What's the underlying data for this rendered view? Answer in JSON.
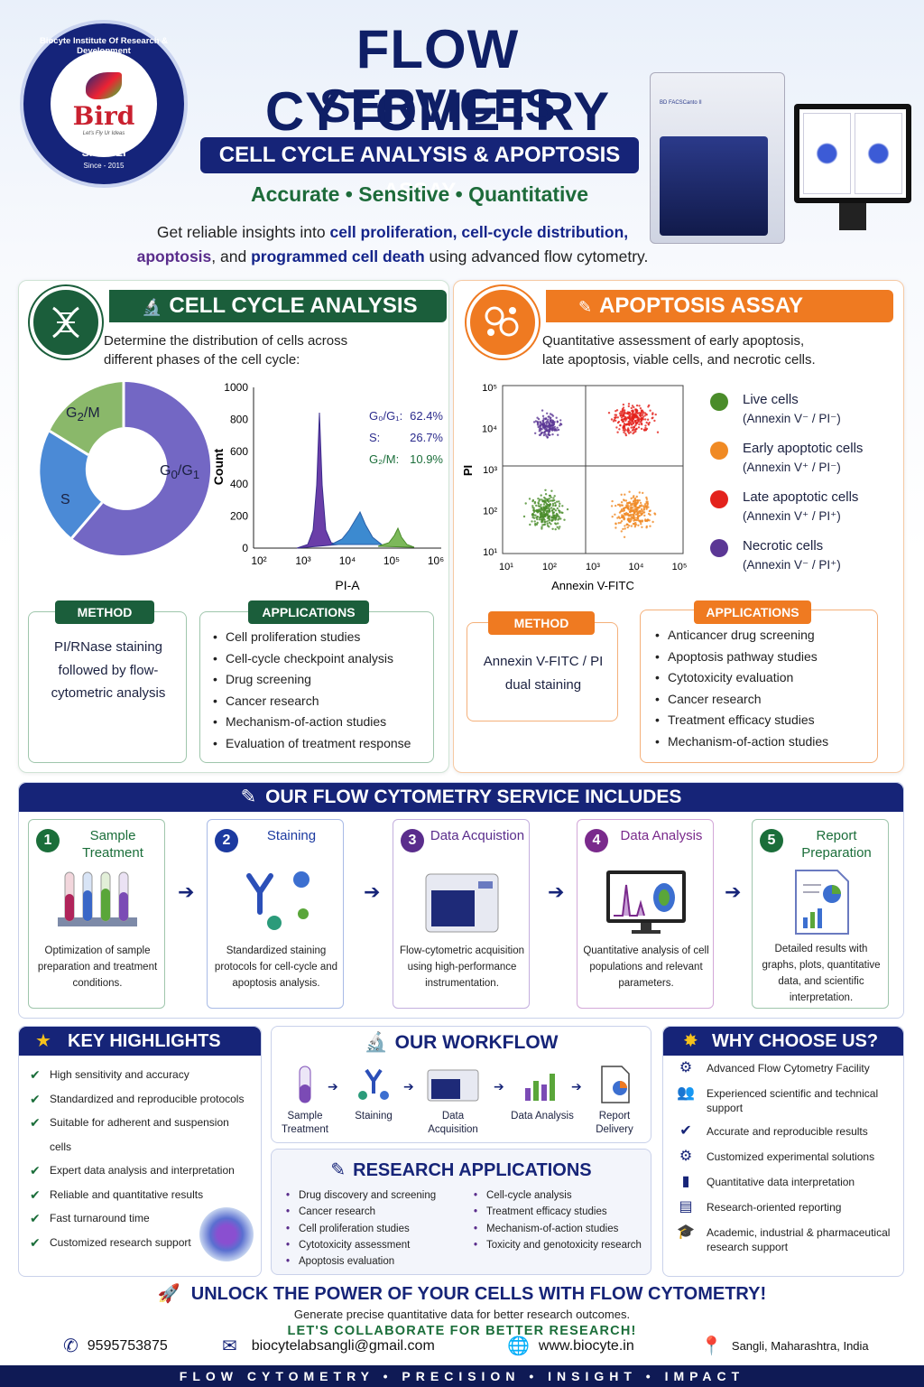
{
  "logo": {
    "ring_text": "Biocyte Institute Of Research & Development",
    "name": "Bird",
    "tagline": "Let's Fly Ur Ideas",
    "city": "SANGLI",
    "since": "Since - 2015"
  },
  "header": {
    "title_line1": "FLOW CYTOMETRY",
    "title_line2": "SERVICES",
    "subtitle": "CELL CYCLE ANALYSIS & APOPTOSIS ASSAY",
    "tagline": "Accurate  •  Sensitive  •  Quantitative",
    "intro_parts": [
      "Get reliable insights into ",
      "cell proliferation, cell-cycle distribution,",
      "apoptosis",
      ", and ",
      "programmed cell death",
      " using advanced flow cytometry."
    ],
    "instrument_label": "BD FACSCanto II"
  },
  "cell_cycle": {
    "title": "CELL CYCLE ANALYSIS",
    "description": "Determine the distribution of cells across different phases of the cell cycle:",
    "donut_labels": [
      "G2/M",
      "S",
      "G0/G1"
    ],
    "hist_legend": [
      "G0/G1:  62.4%",
      "S:          26.7%",
      "G2/M:  10.9%"
    ],
    "hist_ylabel": "Count",
    "hist_xlabel": "PI-A",
    "hist_yticks": [
      "1000",
      "800",
      "600",
      "400",
      "200",
      "0"
    ],
    "hist_xticks": [
      "10²",
      "10³",
      "10⁴",
      "10⁵",
      "10⁶"
    ],
    "method_label": "METHOD",
    "method_text": "PI/RNase staining followed by flow-cytometric analysis",
    "applications_label": "APPLICATIONS",
    "applications": [
      "Cell proliferation studies",
      "Cell-cycle checkpoint analysis",
      "Drug screening",
      "Cancer research",
      "Mechanism-of-action studies",
      "Evaluation of treatment response"
    ]
  },
  "apoptosis": {
    "title": "APOPTOSIS ASSAY",
    "description": "Quantitative assessment of early apoptosis, late apoptosis, viable cells, and necrotic cells.",
    "ylabel": "PI",
    "xlabel": "Annexin V-FITC",
    "yticks": [
      "10⁵",
      "10⁴",
      "10³",
      "10²",
      "10¹"
    ],
    "xticks": [
      "10¹",
      "10²",
      "10³",
      "10⁴",
      "10⁵"
    ],
    "legend": [
      {
        "name": "Live cells",
        "detail": "(Annexin V⁻ / PI⁻)",
        "color": "#4a8c2a"
      },
      {
        "name": "Early apoptotic cells",
        "detail": "(Annexin V⁺ / PI⁻)",
        "color": "#f08a24"
      },
      {
        "name": "Late apoptotic cells",
        "detail": "(Annexin V⁺ / PI⁺)",
        "color": "#e3221c"
      },
      {
        "name": "Necrotic cells",
        "detail": "(Annexin V⁻ / PI⁺)",
        "color": "#5b3795"
      }
    ],
    "method_label": "METHOD",
    "method_text": "Annexin V-FITC / PI dual staining",
    "applications_label": "APPLICATIONS",
    "applications": [
      "Anticancer drug screening",
      "Apoptosis pathway studies",
      "Cytotoxicity evaluation",
      "Cancer research",
      "Treatment efficacy studies",
      "Mechanism-of-action studies"
    ]
  },
  "services": {
    "title": "OUR FLOW CYTOMETRY SERVICE INCLUDES",
    "steps": [
      {
        "num": "1",
        "title": "Sample Treatment",
        "desc": "Optimization of sample preparation and treatment conditions.",
        "color": "#1b6e3a"
      },
      {
        "num": "2",
        "title": "Staining",
        "desc": "Standardized staining protocols for cell-cycle and apoptosis analysis.",
        "color": "#1c3aa0"
      },
      {
        "num": "3",
        "title": "Data Acquistion",
        "desc": "Flow-cytometric acquisition using high-performance instrumentation.",
        "color": "#5a2d8c"
      },
      {
        "num": "4",
        "title": "Data Analysis",
        "desc": "Quantitative analysis of cell populations and relevant parameters.",
        "color": "#7a2a8c"
      },
      {
        "num": "5",
        "title": "Report Preparation",
        "desc": "Detailed results with graphs, plots, quantitative data, and scientific interpretation.",
        "color": "#1b6e3a"
      }
    ]
  },
  "highlights": {
    "title": "KEY HIGHLIGHTS",
    "items": [
      "High sensitivity and accuracy",
      "Standardized and reproducible protocols",
      "Suitable for adherent and suspension cells",
      "Expert data analysis and interpretation",
      "Reliable and quantitative results",
      "Fast turnaround time",
      "Customized research support"
    ]
  },
  "workflow": {
    "title": "OUR WORKFLOW",
    "steps": [
      "Sample Treatment",
      "Staining",
      "Data Acquisition",
      "Data Analysis",
      "Report Delivery"
    ]
  },
  "research": {
    "title": "RESEARCH APPLICATIONS",
    "col1": [
      "Drug discovery and screening",
      "Cancer research",
      "Cell proliferation studies",
      "Cytotoxicity assessment",
      "Apoptosis evaluation"
    ],
    "col2": [
      "Cell-cycle analysis",
      "Treatment efficacy studies",
      "Mechanism-of-action studies",
      "Toxicity and genotoxicity research"
    ]
  },
  "why": {
    "title": "WHY CHOOSE US?",
    "items": [
      "Advanced Flow Cytometry Facility",
      "Experienced scientific and technical support",
      "Accurate and reproducible results",
      "Customized experimental solutions",
      "Quantitative data interpretation",
      "Research-oriented reporting",
      "Academic, industrial & pharmaceutical research support"
    ]
  },
  "footer": {
    "unlock": "UNLOCK THE POWER OF YOUR CELLS WITH FLOW CYTOMETRY!",
    "generate": "Generate precise quantitative data for better research outcomes.",
    "collaborate": "LET'S COLLABORATE FOR BETTER RESEARCH!",
    "phone": "9595753875",
    "email": "biocytelabsangli@gmail.com",
    "website": "www.biocyte.in",
    "location": "Sangli, Maharashtra, India",
    "bar": "FLOW  CYTOMETRY  •  PRECISION  •  INSIGHT  •  IMPACT"
  }
}
